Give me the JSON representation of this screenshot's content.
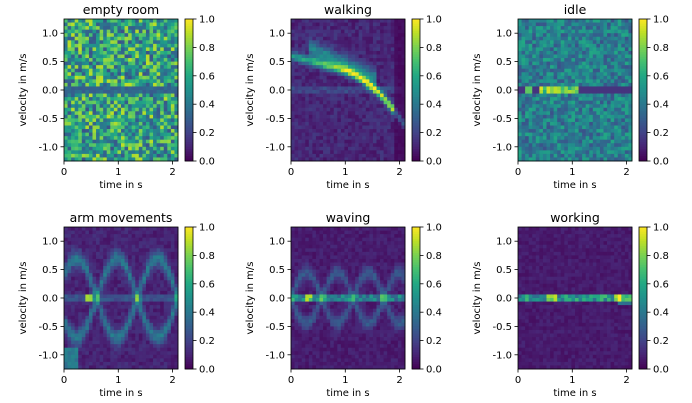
{
  "chart_data": [
    {
      "type": "heatmap",
      "title": "empty room",
      "xlabel": "time in s",
      "ylabel": "velocity in m/s",
      "xlim": [
        0,
        2.1
      ],
      "ylim": [
        -1.25,
        1.25
      ],
      "xticks": [
        "0",
        "1",
        "2"
      ],
      "yticks": [
        "1.0",
        "0.5",
        "0.0",
        "-0.5",
        "-1.0"
      ],
      "colorbar": {
        "min": 0.0,
        "max": 1.0,
        "ticks": [
          "0.0",
          "0.2",
          "0.4",
          "0.6",
          "0.8",
          "1.0"
        ],
        "colormap": "viridis"
      },
      "grid": {
        "cols": 32,
        "rows": 40
      },
      "pattern": "uniform-noise",
      "description_values": {
        "background_level": 0.55,
        "zero_line_level": 0.3
      }
    },
    {
      "type": "heatmap",
      "title": "walking",
      "xlabel": "time in s",
      "ylabel": "velocity in m/s",
      "xlim": [
        0,
        2.1
      ],
      "ylim": [
        -1.25,
        1.25
      ],
      "xticks": [
        "0",
        "1",
        "2"
      ],
      "yticks": [
        "1.0",
        "0.5",
        "0.0",
        "-0.5",
        "-1.0"
      ],
      "colorbar": {
        "min": 0.0,
        "max": 1.0,
        "ticks": [
          "0.0",
          "0.2",
          "0.4",
          "0.6",
          "0.8",
          "1.0"
        ],
        "colormap": "viridis"
      },
      "grid": {
        "cols": 32,
        "rows": 40
      },
      "pattern": "walking-curve",
      "description_values": {
        "background_level": 0.12,
        "peak_level": 0.95
      }
    },
    {
      "type": "heatmap",
      "title": "idle",
      "xlabel": "time in s",
      "ylabel": "velocity in m/s",
      "xlim": [
        0,
        2.1
      ],
      "ylim": [
        -1.25,
        1.25
      ],
      "xticks": [
        "0",
        "1",
        "2"
      ],
      "yticks": [
        "1.0",
        "0.5",
        "0.0",
        "-0.5",
        "-1.0"
      ],
      "colorbar": {
        "min": 0.0,
        "max": 1.0,
        "ticks": [
          "0.0",
          "0.2",
          "0.4",
          "0.6",
          "0.8",
          "1.0"
        ],
        "colormap": "viridis"
      },
      "grid": {
        "cols": 32,
        "rows": 40
      },
      "pattern": "idle-noise",
      "description_values": {
        "background_level": 0.4,
        "zero_line_peak": 0.9
      }
    },
    {
      "type": "heatmap",
      "title": "arm movements",
      "xlabel": "time in s",
      "ylabel": "velocity in m/s",
      "xlim": [
        0,
        2.1
      ],
      "ylim": [
        -1.25,
        1.25
      ],
      "xticks": [
        "0",
        "1",
        "2"
      ],
      "yticks": [
        "1.0",
        "0.5",
        "0.0",
        "-0.5",
        "-1.0"
      ],
      "colorbar": {
        "min": 0.0,
        "max": 1.0,
        "ticks": [
          "0.0",
          "0.2",
          "0.4",
          "0.6",
          "0.8",
          "1.0"
        ],
        "colormap": "viridis"
      },
      "grid": {
        "cols": 32,
        "rows": 40
      },
      "pattern": "arm-waves",
      "description_values": {
        "background_level": 0.1,
        "peak_level": 0.8
      }
    },
    {
      "type": "heatmap",
      "title": "waving",
      "xlabel": "time in s",
      "ylabel": "velocity in m/s",
      "xlim": [
        0,
        2.1
      ],
      "ylim": [
        -1.25,
        1.25
      ],
      "xticks": [
        "0",
        "1",
        "2"
      ],
      "yticks": [
        "1.0",
        "0.5",
        "0.0",
        "-0.5",
        "-1.0"
      ],
      "colorbar": {
        "min": 0.0,
        "max": 1.0,
        "ticks": [
          "0.0",
          "0.2",
          "0.4",
          "0.6",
          "0.8",
          "1.0"
        ],
        "colormap": "viridis"
      },
      "grid": {
        "cols": 32,
        "rows": 40
      },
      "pattern": "waving",
      "description_values": {
        "background_level": 0.08,
        "peak_level": 0.7
      }
    },
    {
      "type": "heatmap",
      "title": "working",
      "xlabel": "time in s",
      "ylabel": "velocity in m/s",
      "xlim": [
        0,
        2.1
      ],
      "ylim": [
        -1.25,
        1.25
      ],
      "xticks": [
        "0",
        "1",
        "2"
      ],
      "yticks": [
        "1.0",
        "0.5",
        "0.0",
        "-0.5",
        "-1.0"
      ],
      "colorbar": {
        "min": 0.0,
        "max": 1.0,
        "ticks": [
          "0.0",
          "0.2",
          "0.4",
          "0.6",
          "0.8",
          "1.0"
        ],
        "colormap": "viridis"
      },
      "grid": {
        "cols": 32,
        "rows": 40
      },
      "pattern": "working",
      "description_values": {
        "background_level": 0.08,
        "peak_level": 0.85
      }
    }
  ]
}
